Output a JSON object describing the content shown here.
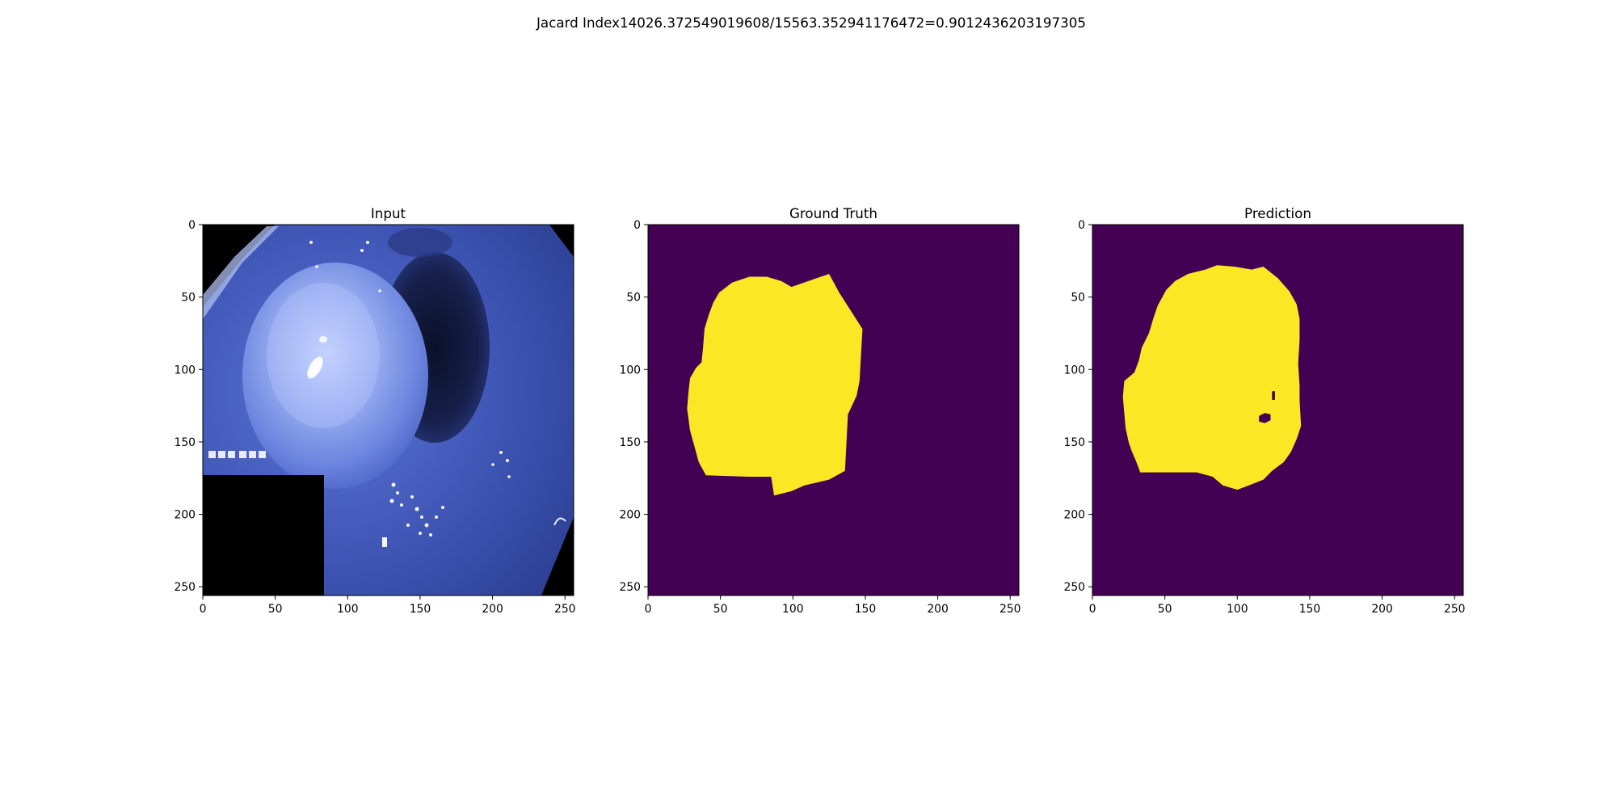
{
  "figure": {
    "suptitle": "Jacard Index14026.372549019608/15563.352941176472=0.9012436203197305"
  },
  "chart_data": [
    {
      "type": "heatmap",
      "title": "Input",
      "image_kind": "endoscopy photo (blue-tinted narrow-band imaging)",
      "xlim": [
        0,
        256
      ],
      "ylim": [
        256,
        0
      ],
      "xticks": [
        0,
        50,
        100,
        150,
        200,
        250
      ],
      "yticks": [
        0,
        50,
        100,
        150,
        200,
        250
      ],
      "overlay_text": [
        "",
        "",
        "",
        "",
        ""
      ],
      "colors": {
        "tissue": "#3f57b8",
        "highlight": "#b9c8ff",
        "lumen": "#101630",
        "mask": "#000000"
      }
    },
    {
      "type": "heatmap",
      "title": "Ground Truth",
      "image_kind": "binary mask",
      "xlim": [
        0,
        256
      ],
      "ylim": [
        256,
        0
      ],
      "xticks": [
        0,
        50,
        100,
        150,
        200,
        250
      ],
      "yticks": [
        0,
        50,
        100,
        150,
        200,
        250
      ],
      "colors": {
        "background": "#440154",
        "foreground": "#fde725"
      },
      "region_outline": [
        [
          49,
          47
        ],
        [
          58,
          40
        ],
        [
          70,
          36
        ],
        [
          82,
          36
        ],
        [
          92,
          39
        ],
        [
          99,
          43
        ],
        [
          125,
          34
        ],
        [
          132,
          47
        ],
        [
          148,
          72
        ],
        [
          146,
          108
        ],
        [
          144,
          118
        ],
        [
          138,
          131
        ],
        [
          136,
          170
        ],
        [
          125,
          176
        ],
        [
          108,
          180
        ],
        [
          99,
          184
        ],
        [
          87,
          187
        ],
        [
          85,
          174
        ],
        [
          70,
          174
        ],
        [
          40,
          173
        ],
        [
          35,
          164
        ],
        [
          29,
          142
        ],
        [
          27,
          127
        ],
        [
          28,
          115
        ],
        [
          29,
          106
        ],
        [
          33,
          99
        ],
        [
          37,
          95
        ],
        [
          38,
          85
        ],
        [
          39,
          72
        ],
        [
          42,
          62
        ],
        [
          45,
          54
        ]
      ]
    },
    {
      "type": "heatmap",
      "title": "Prediction",
      "image_kind": "binary mask",
      "xlim": [
        0,
        256
      ],
      "ylim": [
        256,
        0
      ],
      "xticks": [
        0,
        50,
        100,
        150,
        200,
        250
      ],
      "yticks": [
        0,
        50,
        100,
        150,
        200,
        250
      ],
      "colors": {
        "background": "#440154",
        "foreground": "#fde725"
      },
      "region_outline": [
        [
          51,
          45
        ],
        [
          57,
          39
        ],
        [
          66,
          34
        ],
        [
          78,
          31
        ],
        [
          86,
          28
        ],
        [
          98,
          29
        ],
        [
          110,
          31
        ],
        [
          118,
          29
        ],
        [
          128,
          37
        ],
        [
          136,
          46
        ],
        [
          141,
          55
        ],
        [
          143,
          65
        ],
        [
          143,
          80
        ],
        [
          142,
          96
        ],
        [
          143,
          111
        ],
        [
          143,
          121
        ],
        [
          144,
          139
        ],
        [
          141,
          148
        ],
        [
          137,
          157
        ],
        [
          132,
          164
        ],
        [
          124,
          170
        ],
        [
          118,
          176
        ],
        [
          108,
          180
        ],
        [
          100,
          183
        ],
        [
          90,
          180
        ],
        [
          83,
          174
        ],
        [
          72,
          171
        ],
        [
          58,
          171
        ],
        [
          33,
          171
        ],
        [
          30,
          163
        ],
        [
          27,
          156
        ],
        [
          25,
          150
        ],
        [
          23,
          141
        ],
        [
          22,
          130
        ],
        [
          21,
          119
        ],
        [
          22,
          108
        ],
        [
          29,
          102
        ],
        [
          32,
          94
        ],
        [
          34,
          85
        ],
        [
          39,
          75
        ],
        [
          42,
          65
        ],
        [
          45,
          56
        ]
      ],
      "holes": [
        [
          [
            124,
            115
          ],
          [
            126,
            115
          ],
          [
            126,
            121
          ],
          [
            124,
            121
          ]
        ],
        [
          [
            115,
            132
          ],
          [
            119,
            130
          ],
          [
            123,
            131
          ],
          [
            123,
            135
          ],
          [
            119,
            137
          ],
          [
            115,
            136
          ]
        ]
      ]
    }
  ]
}
